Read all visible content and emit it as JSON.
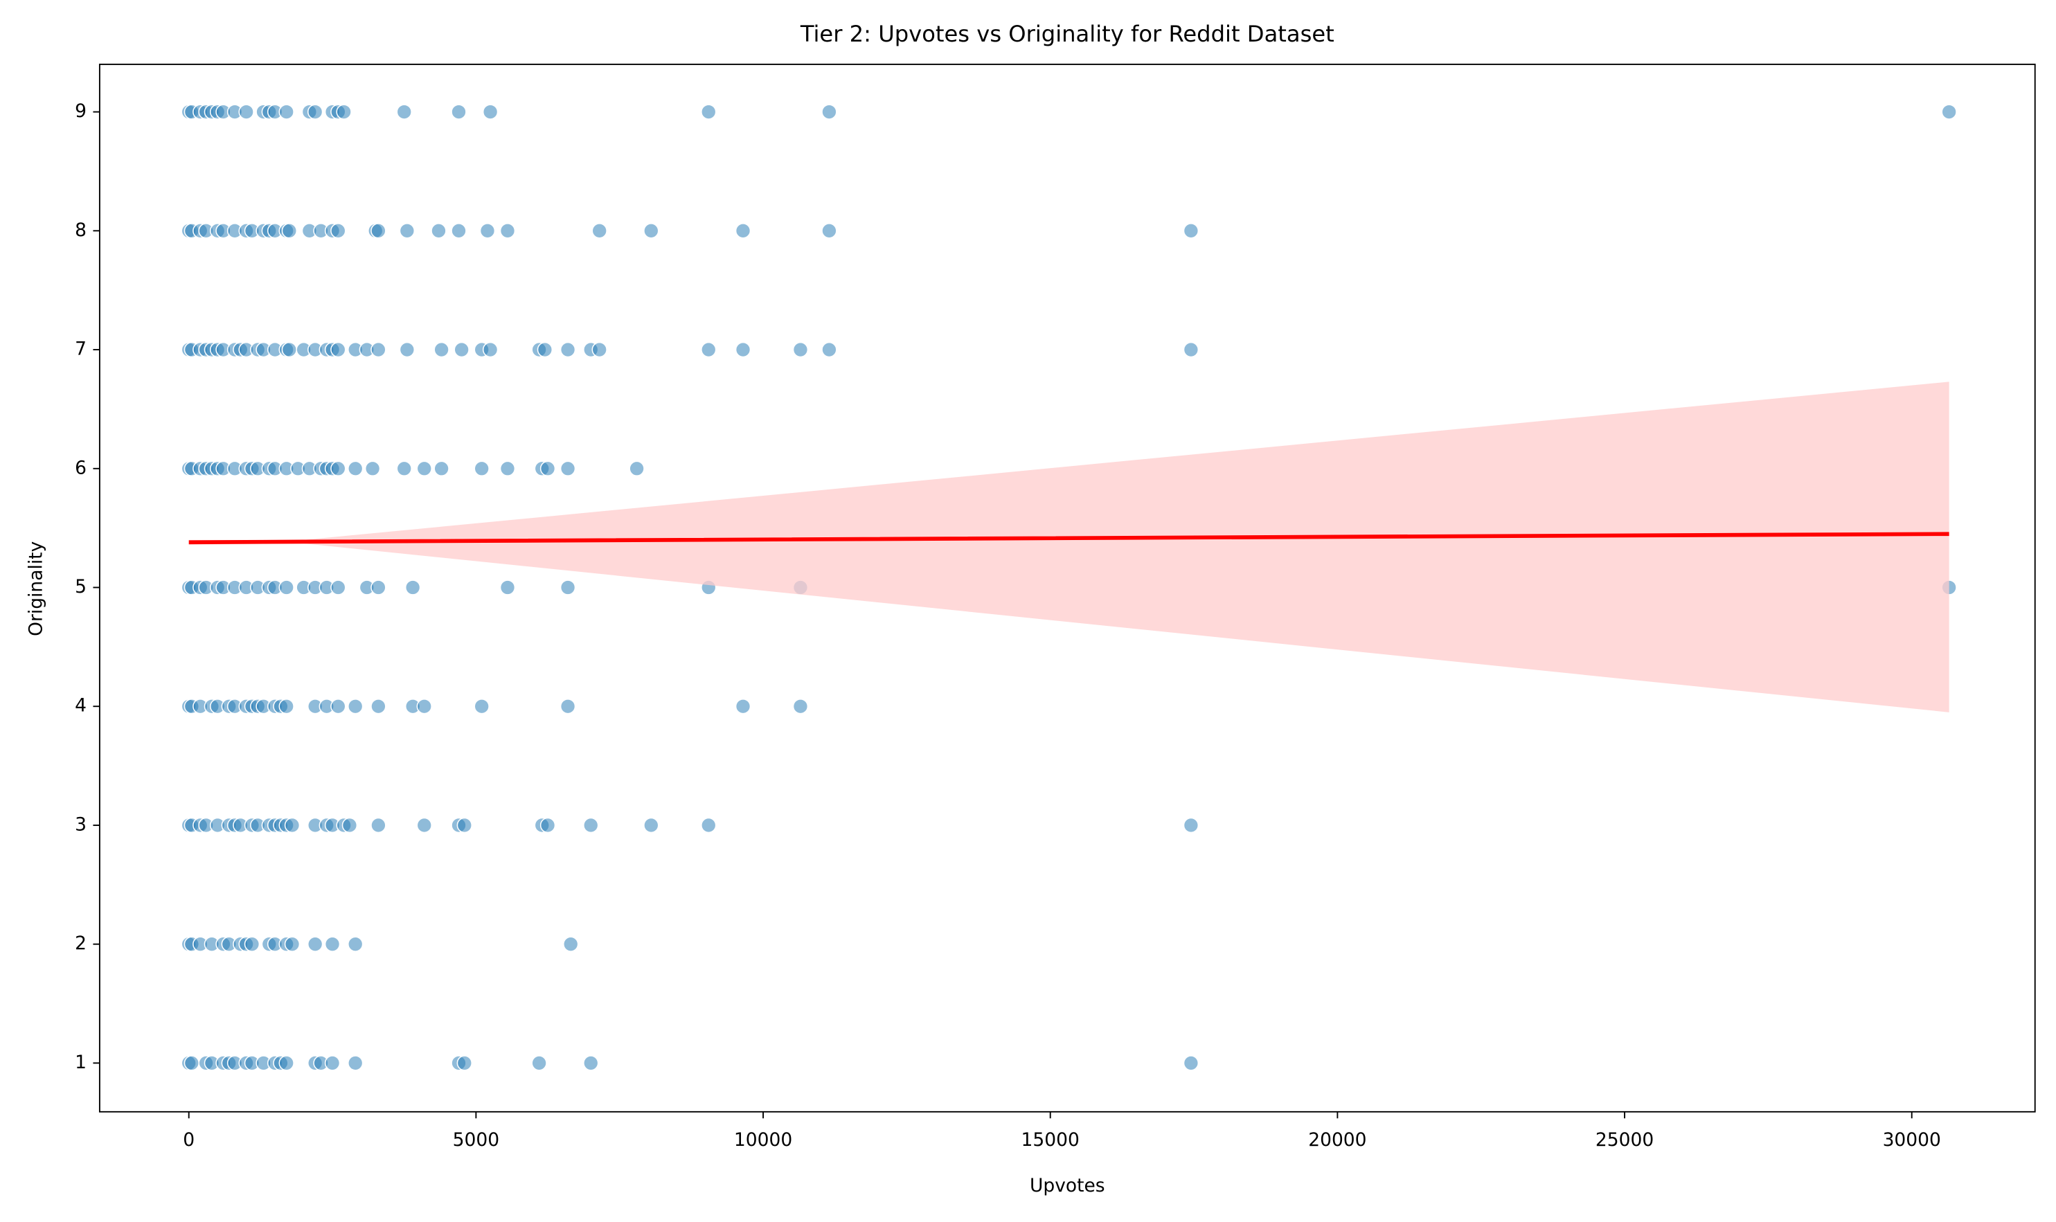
{
  "chart_data": {
    "type": "scatter",
    "title": "Tier 2: Upvotes vs Originality for Reddit Dataset",
    "x_label": "Upvotes",
    "y_label": "Originality",
    "color": "#1f77b4",
    "x": [
      0,
      50,
      200,
      300,
      400,
      500,
      600,
      800,
      1000,
      1300,
      1400,
      1500,
      1700,
      2100,
      2200,
      2500,
      2600,
      2700,
      3750,
      4700,
      5250,
      9050,
      11150,
      30650,
      0,
      50,
      200,
      300,
      500,
      600,
      800,
      1000,
      1100,
      1300,
      1400,
      1500,
      1700,
      1750,
      2100,
      2300,
      2500,
      2600,
      3250,
      3300,
      3800,
      4350,
      4700,
      5200,
      5550,
      7150,
      8050,
      9650,
      11150,
      17450,
      0,
      50,
      200,
      300,
      400,
      500,
      600,
      800,
      900,
      1000,
      1200,
      1300,
      1500,
      1700,
      1750,
      2000,
      2200,
      2400,
      2500,
      2600,
      2900,
      3100,
      3300,
      3800,
      4400,
      4750,
      5100,
      5250,
      6100,
      6200,
      6600,
      7000,
      7150,
      9050,
      9650,
      10650,
      11150,
      17450,
      0,
      50,
      200,
      300,
      400,
      500,
      600,
      800,
      1000,
      1100,
      1200,
      1400,
      1500,
      1700,
      1900,
      2100,
      2300,
      2400,
      2500,
      2600,
      2900,
      3200,
      3750,
      4100,
      4400,
      5100,
      5550,
      6150,
      6250,
      6600,
      7800,
      0,
      50,
      200,
      300,
      500,
      600,
      800,
      1000,
      1200,
      1400,
      1500,
      1700,
      2000,
      2200,
      2400,
      2600,
      3100,
      3300,
      3900,
      5550,
      6600,
      9050,
      10650,
      30650,
      0,
      50,
      200,
      400,
      500,
      700,
      800,
      1000,
      1100,
      1200,
      1300,
      1500,
      1600,
      1700,
      2200,
      2400,
      2600,
      2900,
      3300,
      3900,
      4100,
      5100,
      6600,
      9650,
      10650,
      0,
      50,
      200,
      300,
      500,
      700,
      800,
      900,
      1100,
      1200,
      1400,
      1500,
      1600,
      1700,
      1800,
      2200,
      2400,
      2500,
      2700,
      2800,
      3300,
      4100,
      4700,
      4800,
      6150,
      6250,
      7000,
      8050,
      9050,
      17450,
      0,
      50,
      200,
      400,
      600,
      700,
      900,
      1000,
      1100,
      1400,
      1500,
      1700,
      1800,
      2200,
      2500,
      2900,
      6650,
      0,
      50,
      300,
      400,
      600,
      700,
      800,
      1000,
      1100,
      1300,
      1500,
      1600,
      1700,
      2200,
      2300,
      2500,
      2900,
      4700,
      4800,
      6100,
      7000,
      17450
    ],
    "y": [
      9,
      9,
      9,
      9,
      9,
      9,
      9,
      9,
      9,
      9,
      9,
      9,
      9,
      9,
      9,
      9,
      9,
      9,
      9,
      9,
      9,
      9,
      9,
      9,
      8,
      8,
      8,
      8,
      8,
      8,
      8,
      8,
      8,
      8,
      8,
      8,
      8,
      8,
      8,
      8,
      8,
      8,
      8,
      8,
      8,
      8,
      8,
      8,
      8,
      8,
      8,
      8,
      8,
      8,
      7,
      7,
      7,
      7,
      7,
      7,
      7,
      7,
      7,
      7,
      7,
      7,
      7,
      7,
      7,
      7,
      7,
      7,
      7,
      7,
      7,
      7,
      7,
      7,
      7,
      7,
      7,
      7,
      7,
      7,
      7,
      7,
      7,
      7,
      7,
      7,
      7,
      7,
      6,
      6,
      6,
      6,
      6,
      6,
      6,
      6,
      6,
      6,
      6,
      6,
      6,
      6,
      6,
      6,
      6,
      6,
      6,
      6,
      6,
      6,
      6,
      6,
      6,
      6,
      6,
      6,
      6,
      6,
      6,
      5,
      5,
      5,
      5,
      5,
      5,
      5,
      5,
      5,
      5,
      5,
      5,
      5,
      5,
      5,
      5,
      5,
      5,
      5,
      5,
      5,
      5,
      5,
      5,
      4,
      4,
      4,
      4,
      4,
      4,
      4,
      4,
      4,
      4,
      4,
      4,
      4,
      4,
      4,
      4,
      4,
      4,
      4,
      4,
      4,
      4,
      4,
      4,
      4,
      3,
      3,
      3,
      3,
      3,
      3,
      3,
      3,
      3,
      3,
      3,
      3,
      3,
      3,
      3,
      3,
      3,
      3,
      3,
      3,
      3,
      3,
      3,
      3,
      3,
      3,
      3,
      3,
      3,
      3,
      2,
      2,
      2,
      2,
      2,
      2,
      2,
      2,
      2,
      2,
      2,
      2,
      2,
      2,
      2,
      2,
      2,
      1,
      1,
      1,
      1,
      1,
      1,
      1,
      1,
      1,
      1,
      1,
      1,
      1,
      1,
      1,
      1,
      1,
      1,
      1,
      1,
      1,
      1
    ],
    "regression": {
      "color": "#ff0000",
      "band_color": "#ffcccc",
      "x": [
        0,
        2000,
        30650
      ],
      "y": [
        5.38,
        5.385,
        5.45
      ],
      "ci_lower": [
        5.36,
        5.37,
        3.95
      ],
      "ci_upper": [
        5.4,
        5.4,
        6.73
      ]
    },
    "xlim": [
      -1553,
      32146
    ],
    "ylim": [
      0.59,
      9.4
    ],
    "xticks": [
      0,
      5000,
      10000,
      15000,
      20000,
      25000,
      30000
    ],
    "yticks": [
      1,
      2,
      3,
      4,
      5,
      6,
      7,
      8,
      9
    ]
  }
}
